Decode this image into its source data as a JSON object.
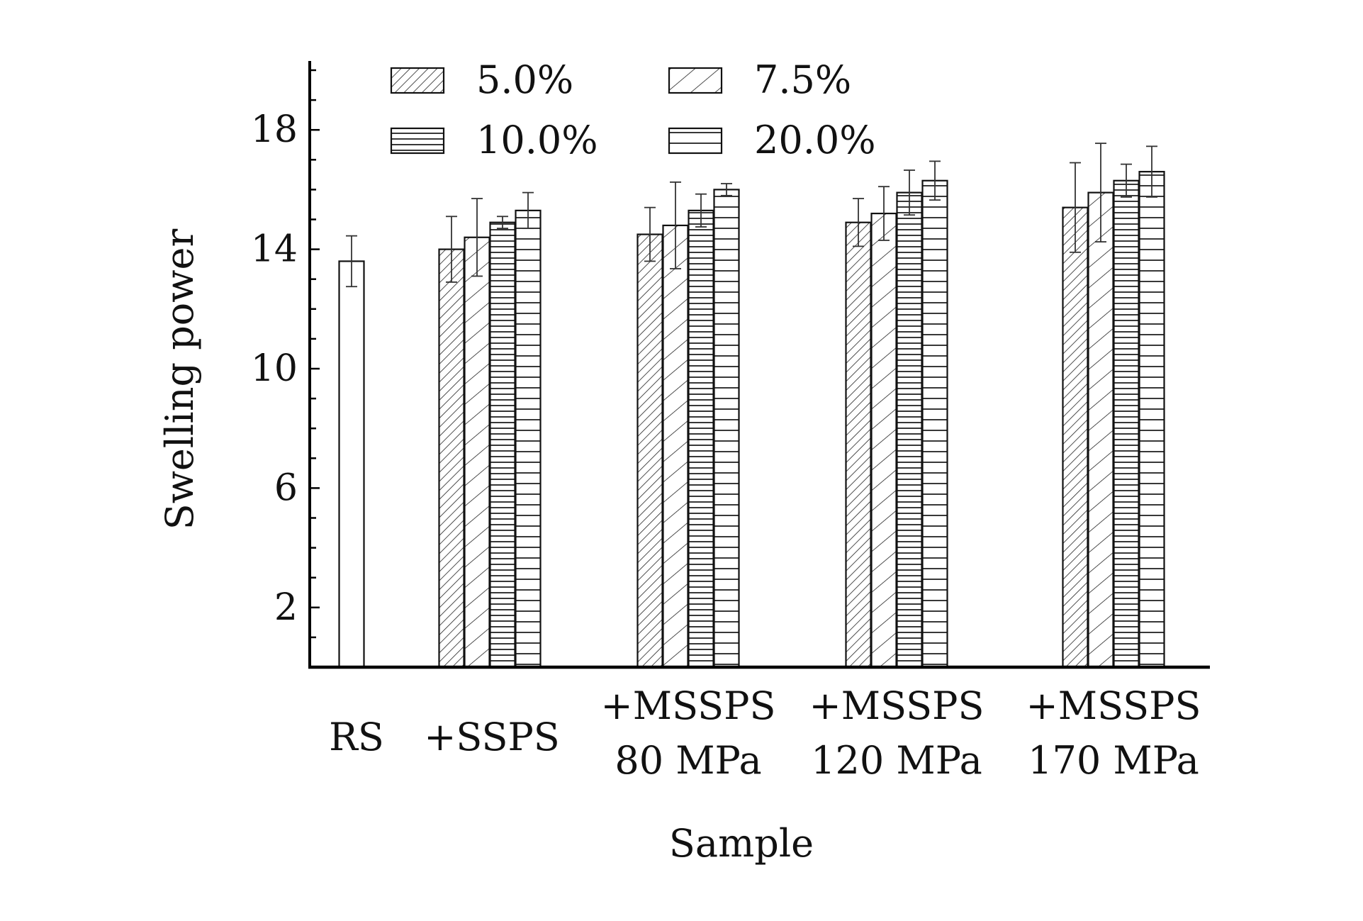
{
  "chart_data": {
    "type": "bar",
    "title": "",
    "xlabel": "Sample",
    "ylabel": "Swelling power",
    "ylim": [
      0,
      20.3
    ],
    "yticks": [
      2,
      6,
      10,
      14,
      18
    ],
    "grid": false,
    "legend_position": "top",
    "categories": [
      [
        "RS"
      ],
      [
        "+SSPS"
      ],
      [
        "+MSSPS",
        "80 MPa"
      ],
      [
        "+MSSPS",
        "120 MPa"
      ],
      [
        "+MSSPS",
        "170 MPa"
      ]
    ],
    "control": {
      "category": "RS",
      "value": 13.6,
      "error": 0.85,
      "pattern": "empty"
    },
    "series": [
      {
        "name": "5.0%",
        "pattern": "dense-diagonal",
        "values": [
          null,
          14.0,
          14.5,
          14.9,
          15.4
        ],
        "errors": [
          null,
          1.1,
          0.9,
          0.8,
          1.5
        ]
      },
      {
        "name": "7.5%",
        "pattern": "sparse-diagonal",
        "values": [
          null,
          14.4,
          14.8,
          15.2,
          15.9
        ],
        "errors": [
          null,
          1.3,
          1.45,
          0.9,
          1.65
        ]
      },
      {
        "name": "10.0%",
        "pattern": "dense-horizontal",
        "values": [
          null,
          14.9,
          15.3,
          15.9,
          16.3
        ],
        "errors": [
          null,
          0.2,
          0.55,
          0.75,
          0.55
        ]
      },
      {
        "name": "20.0%",
        "pattern": "sparse-horizontal",
        "values": [
          null,
          15.3,
          16.0,
          16.3,
          16.6
        ],
        "errors": [
          null,
          0.6,
          0.2,
          0.65,
          0.85
        ]
      }
    ],
    "colors": {
      "stroke": "#111111",
      "background": "#ffffff"
    }
  }
}
